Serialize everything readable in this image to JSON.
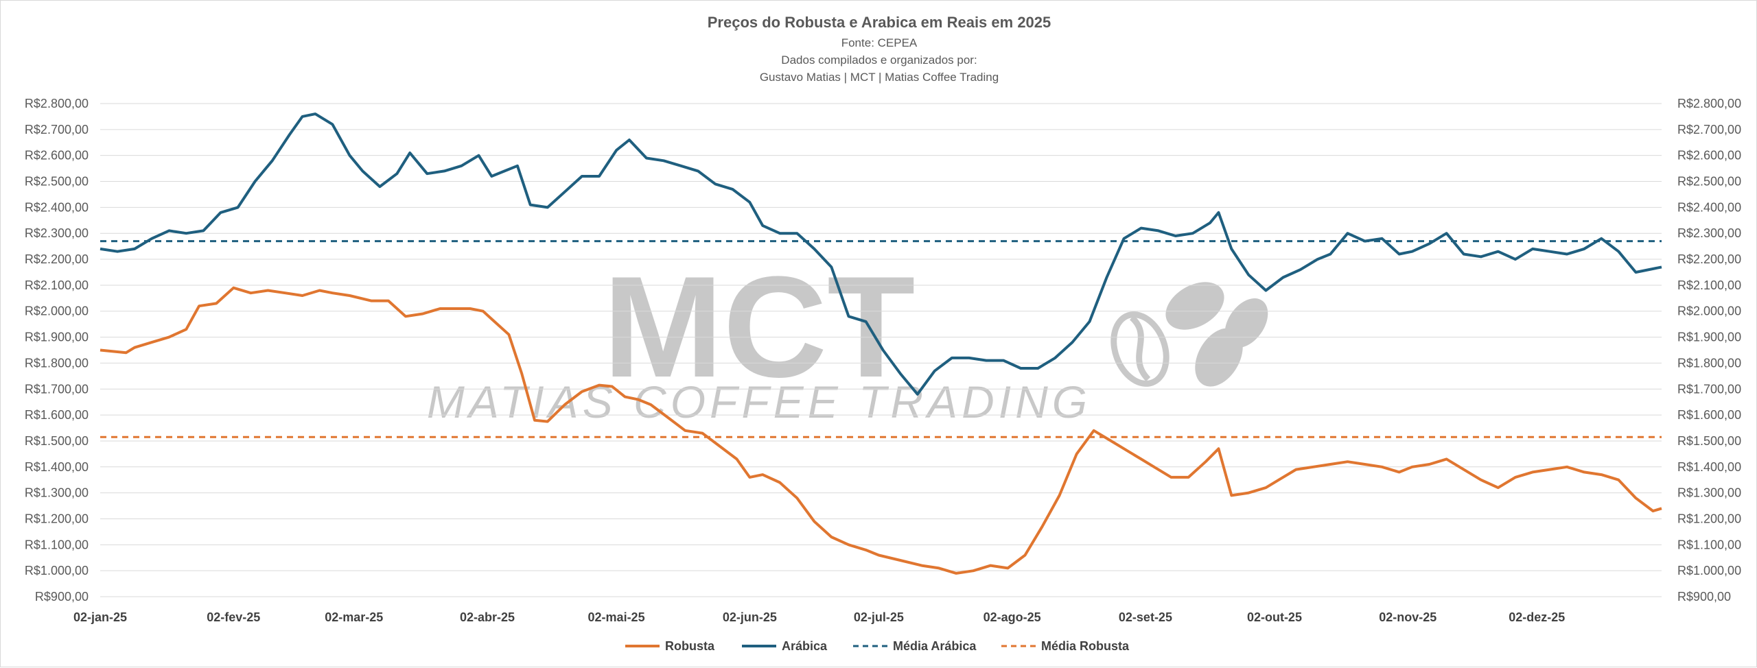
{
  "chart_data": {
    "type": "line",
    "title": "Preços do Robusta e Arabica em Reais em 2025",
    "subtitle_lines": [
      "Fonte: CEPEA",
      "Dados compilados e organizados por:",
      "Gustavo Matias | MCT | Matias Coffee Trading"
    ],
    "watermark": {
      "main": "MCT",
      "sub": "MATIAS COFFEE TRADING"
    },
    "x_range": [
      "2025-01-02",
      "2025-12-31"
    ],
    "ylim": [
      900,
      2800
    ],
    "y_ticks": [
      "R$900,00",
      "R$1.000,00",
      "R$1.100,00",
      "R$1.200,00",
      "R$1.300,00",
      "R$1.400,00",
      "R$1.500,00",
      "R$1.600,00",
      "R$1.700,00",
      "R$1.800,00",
      "R$1.900,00",
      "R$2.000,00",
      "R$2.100,00",
      "R$2.200,00",
      "R$2.300,00",
      "R$2.400,00",
      "R$2.500,00",
      "R$2.600,00",
      "R$2.700,00",
      "R$2.800,00"
    ],
    "x_ticks": [
      {
        "date": "2025-01-02",
        "label": "02-jan-25"
      },
      {
        "date": "2025-02-02",
        "label": "02-fev-25"
      },
      {
        "date": "2025-03-02",
        "label": "02-mar-25"
      },
      {
        "date": "2025-04-02",
        "label": "02-abr-25"
      },
      {
        "date": "2025-05-02",
        "label": "02-mai-25"
      },
      {
        "date": "2025-06-02",
        "label": "02-jun-25"
      },
      {
        "date": "2025-07-02",
        "label": "02-jul-25"
      },
      {
        "date": "2025-08-02",
        "label": "02-ago-25"
      },
      {
        "date": "2025-09-02",
        "label": "02-set-25"
      },
      {
        "date": "2025-10-02",
        "label": "02-out-25"
      },
      {
        "date": "2025-11-02",
        "label": "02-nov-25"
      },
      {
        "date": "2025-12-02",
        "label": "02-dez-25"
      }
    ],
    "grid": true,
    "legend_position": "bottom",
    "series": [
      {
        "name": "Robusta",
        "color": "#e07630",
        "style": "solid",
        "x": [
          "2025-01-02",
          "2025-01-08",
          "2025-01-10",
          "2025-01-14",
          "2025-01-18",
          "2025-01-22",
          "2025-01-25",
          "2025-01-29",
          "2025-02-02",
          "2025-02-06",
          "2025-02-10",
          "2025-02-14",
          "2025-02-18",
          "2025-02-22",
          "2025-02-25",
          "2025-03-01",
          "2025-03-06",
          "2025-03-10",
          "2025-03-14",
          "2025-03-18",
          "2025-03-22",
          "2025-03-26",
          "2025-03-29",
          "2025-04-01",
          "2025-04-03",
          "2025-04-07",
          "2025-04-10",
          "2025-04-13",
          "2025-04-16",
          "2025-04-20",
          "2025-04-24",
          "2025-04-28",
          "2025-05-01",
          "2025-05-04",
          "2025-05-07",
          "2025-05-10",
          "2025-05-14",
          "2025-05-18",
          "2025-05-22",
          "2025-05-26",
          "2025-05-30",
          "2025-06-02",
          "2025-06-05",
          "2025-06-09",
          "2025-06-13",
          "2025-06-17",
          "2025-06-21",
          "2025-06-25",
          "2025-06-29",
          "2025-07-02",
          "2025-07-07",
          "2025-07-12",
          "2025-07-16",
          "2025-07-20",
          "2025-07-24",
          "2025-07-28",
          "2025-08-01",
          "2025-08-05",
          "2025-08-09",
          "2025-08-13",
          "2025-08-17",
          "2025-08-21",
          "2025-08-25",
          "2025-08-29",
          "2025-09-01",
          "2025-09-04",
          "2025-09-08",
          "2025-09-12",
          "2025-09-16",
          "2025-09-19",
          "2025-09-22",
          "2025-09-26",
          "2025-09-30",
          "2025-10-03",
          "2025-10-07",
          "2025-10-11",
          "2025-10-15",
          "2025-10-19",
          "2025-10-23",
          "2025-10-27",
          "2025-10-31",
          "2025-11-03",
          "2025-11-07",
          "2025-11-11",
          "2025-11-15",
          "2025-11-19",
          "2025-11-23",
          "2025-11-27",
          "2025-12-01",
          "2025-12-05",
          "2025-12-09",
          "2025-12-13",
          "2025-12-17",
          "2025-12-21",
          "2025-12-25",
          "2025-12-29",
          "2025-12-31"
        ],
        "values": [
          1850,
          1840,
          1860,
          1880,
          1900,
          1930,
          2020,
          2030,
          2090,
          2070,
          2080,
          2070,
          2060,
          2080,
          2070,
          2060,
          2040,
          2040,
          1980,
          1990,
          2010,
          2010,
          2010,
          2000,
          1970,
          1910,
          1760,
          1580,
          1575,
          1640,
          1690,
          1715,
          1710,
          1670,
          1660,
          1640,
          1590,
          1540,
          1530,
          1480,
          1430,
          1360,
          1370,
          1340,
          1280,
          1190,
          1130,
          1100,
          1080,
          1060,
          1040,
          1020,
          1010,
          990,
          1000,
          1020,
          1010,
          1060,
          1170,
          1290,
          1450,
          1540,
          1500,
          1460,
          1430,
          1400,
          1360,
          1360,
          1420,
          1470,
          1290,
          1300,
          1320,
          1350,
          1390,
          1400,
          1410,
          1420,
          1410,
          1400,
          1380,
          1400,
          1410,
          1430,
          1390,
          1350,
          1320,
          1360,
          1380,
          1390,
          1400,
          1380,
          1370,
          1350,
          1280,
          1230,
          1240
        ]
      },
      {
        "name": "Arábica",
        "color": "#1f5f7f",
        "style": "solid",
        "x": [
          "2025-01-02",
          "2025-01-06",
          "2025-01-10",
          "2025-01-14",
          "2025-01-18",
          "2025-01-22",
          "2025-01-26",
          "2025-01-30",
          "2025-02-03",
          "2025-02-07",
          "2025-02-11",
          "2025-02-15",
          "2025-02-18",
          "2025-02-21",
          "2025-02-25",
          "2025-03-01",
          "2025-03-04",
          "2025-03-08",
          "2025-03-12",
          "2025-03-15",
          "2025-03-19",
          "2025-03-23",
          "2025-03-27",
          "2025-03-31",
          "2025-04-03",
          "2025-04-06",
          "2025-04-09",
          "2025-04-12",
          "2025-04-16",
          "2025-04-20",
          "2025-04-24",
          "2025-04-28",
          "2025-05-02",
          "2025-05-05",
          "2025-05-09",
          "2025-05-13",
          "2025-05-17",
          "2025-05-21",
          "2025-05-25",
          "2025-05-29",
          "2025-06-02",
          "2025-06-05",
          "2025-06-09",
          "2025-06-13",
          "2025-06-17",
          "2025-06-21",
          "2025-06-25",
          "2025-06-29",
          "2025-07-03",
          "2025-07-07",
          "2025-07-11",
          "2025-07-15",
          "2025-07-19",
          "2025-07-23",
          "2025-07-27",
          "2025-07-31",
          "2025-08-04",
          "2025-08-08",
          "2025-08-12",
          "2025-08-16",
          "2025-08-20",
          "2025-08-24",
          "2025-08-28",
          "2025-09-01",
          "2025-09-05",
          "2025-09-09",
          "2025-09-13",
          "2025-09-17",
          "2025-09-19",
          "2025-09-22",
          "2025-09-26",
          "2025-09-30",
          "2025-10-04",
          "2025-10-08",
          "2025-10-12",
          "2025-10-15",
          "2025-10-19",
          "2025-10-23",
          "2025-10-27",
          "2025-10-31",
          "2025-11-03",
          "2025-11-07",
          "2025-11-11",
          "2025-11-15",
          "2025-11-19",
          "2025-11-23",
          "2025-11-27",
          "2025-12-01",
          "2025-12-05",
          "2025-12-09",
          "2025-12-13",
          "2025-12-17",
          "2025-12-21",
          "2025-12-25",
          "2025-12-31"
        ],
        "values": [
          2240,
          2230,
          2240,
          2280,
          2310,
          2300,
          2310,
          2380,
          2400,
          2500,
          2580,
          2680,
          2750,
          2760,
          2720,
          2600,
          2540,
          2480,
          2530,
          2610,
          2530,
          2540,
          2560,
          2600,
          2520,
          2540,
          2560,
          2410,
          2400,
          2460,
          2520,
          2520,
          2620,
          2660,
          2590,
          2580,
          2560,
          2540,
          2490,
          2470,
          2420,
          2330,
          2300,
          2300,
          2240,
          2170,
          1980,
          1960,
          1850,
          1760,
          1680,
          1770,
          1820,
          1820,
          1810,
          1810,
          1780,
          1780,
          1820,
          1880,
          1960,
          2130,
          2280,
          2320,
          2310,
          2290,
          2300,
          2340,
          2380,
          2240,
          2140,
          2080,
          2130,
          2160,
          2200,
          2220,
          2300,
          2270,
          2280,
          2220,
          2230,
          2260,
          2300,
          2220,
          2210,
          2230,
          2200,
          2240,
          2230,
          2220,
          2240,
          2280,
          2230,
          2150,
          2170
        ]
      },
      {
        "name": "Média Arábica",
        "color": "#1f5f7f",
        "style": "dashed",
        "values": [
          2270
        ]
      },
      {
        "name": "Média Robusta",
        "color": "#e07630",
        "style": "dashed",
        "values": [
          1515
        ]
      }
    ]
  }
}
